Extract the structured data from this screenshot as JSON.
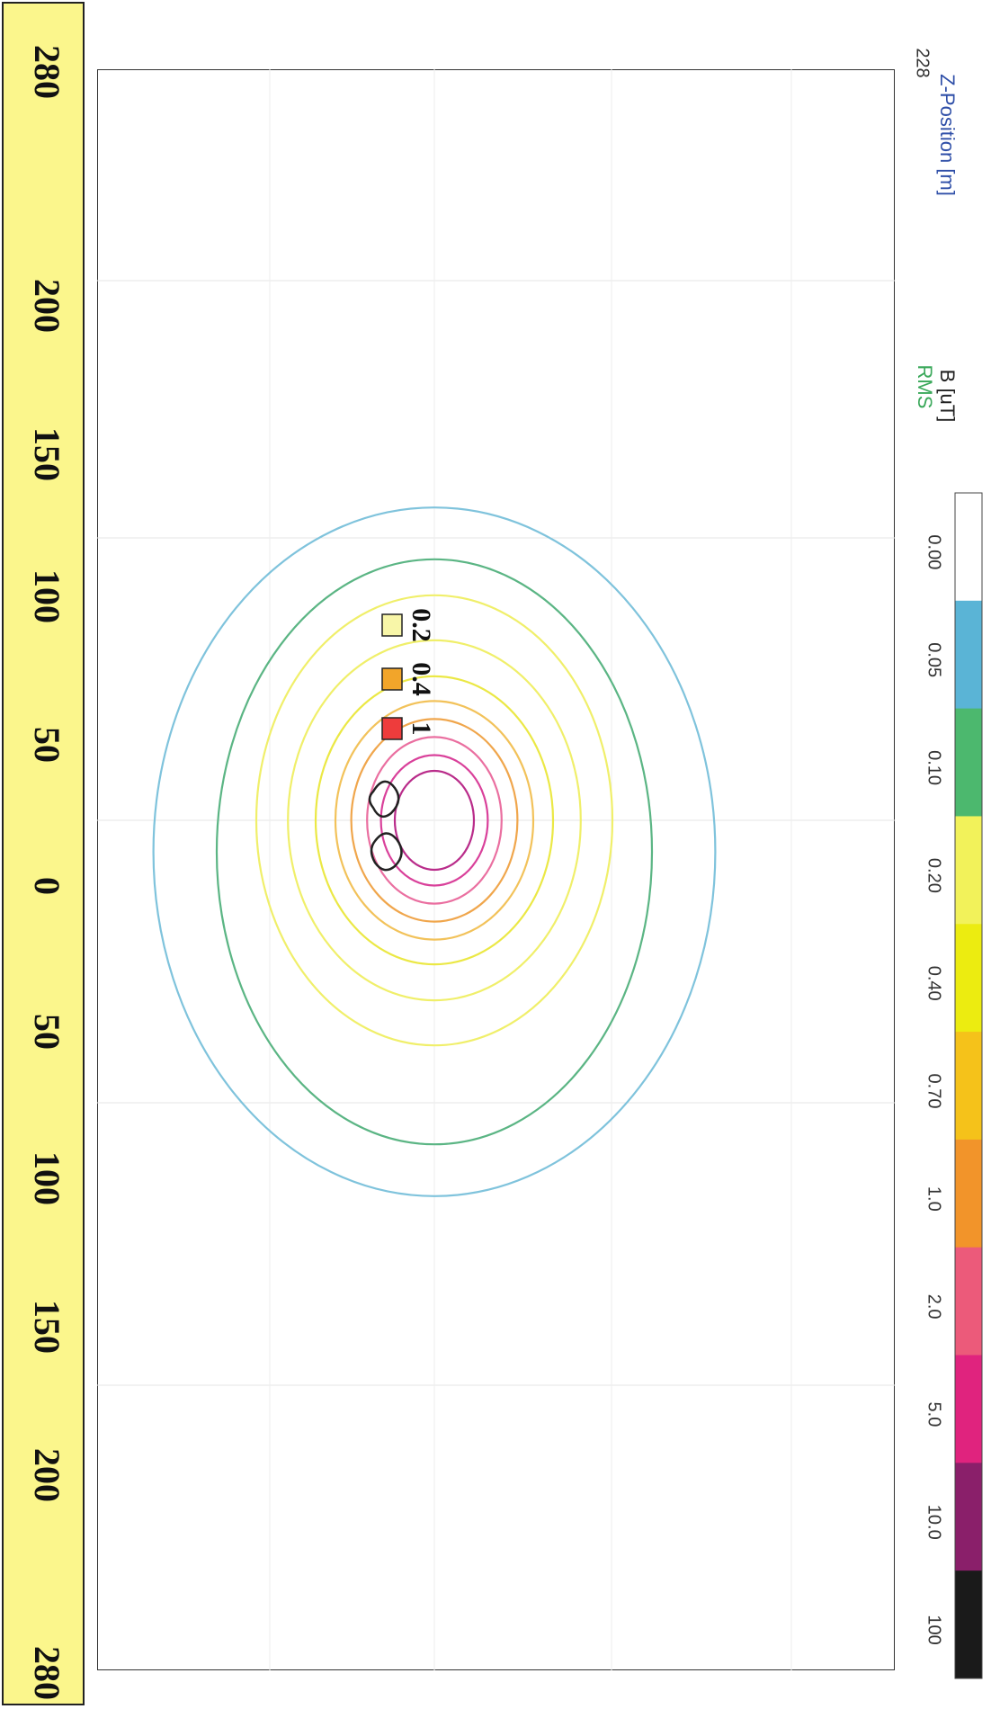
{
  "chart_data": {
    "type": "contour",
    "z_position": {
      "label": "Z-Position [m]",
      "value": "228"
    },
    "quantity": {
      "label": "B [uT]",
      "statistic": "RMS"
    },
    "colorscale": [
      {
        "label": "0.00",
        "color": "#ffffff"
      },
      {
        "label": "0.05",
        "color": "#5ab4d6"
      },
      {
        "label": "0.10",
        "color": "#4cb86e"
      },
      {
        "label": "0.20",
        "color": "#f2f25a"
      },
      {
        "label": "0.40",
        "color": "#ecec10"
      },
      {
        "label": "0.70",
        "color": "#f5c21a"
      },
      {
        "label": "1.0",
        "color": "#f2942a"
      },
      {
        "label": "2.0",
        "color": "#ec5a7a"
      },
      {
        "label": "5.0",
        "color": "#e0237e"
      },
      {
        "label": "10.0",
        "color": "#8a1f6a"
      },
      {
        "label": "100",
        "color": "#1a1a1a"
      }
    ],
    "ruler_ticks": [
      {
        "label": "280",
        "value": -280
      },
      {
        "label": "200",
        "value": -200
      },
      {
        "label": "150",
        "value": -150
      },
      {
        "label": "100",
        "value": -100
      },
      {
        "label": "50",
        "value": -50
      },
      {
        "label": "0",
        "value": 0
      },
      {
        "label": "50",
        "value": 50
      },
      {
        "label": "100",
        "value": 100
      },
      {
        "label": "150",
        "value": 150
      },
      {
        "label": "200",
        "value": 200
      },
      {
        "label": "280",
        "value": 280
      }
    ],
    "ruler_range": [
      -280,
      280
    ],
    "legend": [
      {
        "label": "0.2",
        "color": "#f8f6a8"
      },
      {
        "label": "0.4",
        "color": "#f2a52a"
      },
      {
        "label": "1",
        "color": "#ee3c3c"
      }
    ],
    "contours": [
      {
        "level": 0.05,
        "color": "#7fc3dc",
        "rx_m": 153,
        "ry_m": 142
      },
      {
        "level": 0.1,
        "color": "#5bb584",
        "rx_m": 130,
        "ry_m": 110
      },
      {
        "level": 0.2,
        "color": "#f0ef6a",
        "rx_m": 100,
        "ry_m": 90
      },
      {
        "level": 0.2,
        "color": "#f0ef6a",
        "rx_m": 80,
        "ry_m": 74
      },
      {
        "level": 0.4,
        "color": "#ebe845",
        "rx_m": 64,
        "ry_m": 60
      },
      {
        "level": 0.7,
        "color": "#f2c25a",
        "rx_m": 53,
        "ry_m": 50
      },
      {
        "level": 1.0,
        "color": "#f0a64c",
        "rx_m": 45,
        "ry_m": 42
      },
      {
        "level": 2.0,
        "color": "#ea6fa0",
        "rx_m": 37,
        "ry_m": 34
      },
      {
        "level": 5.0,
        "color": "#d9409a",
        "rx_m": 29,
        "ry_m": 27
      },
      {
        "level": 10.0,
        "color": "#b92c8a",
        "rx_m": 22,
        "ry_m": 20
      }
    ],
    "grid": true
  }
}
